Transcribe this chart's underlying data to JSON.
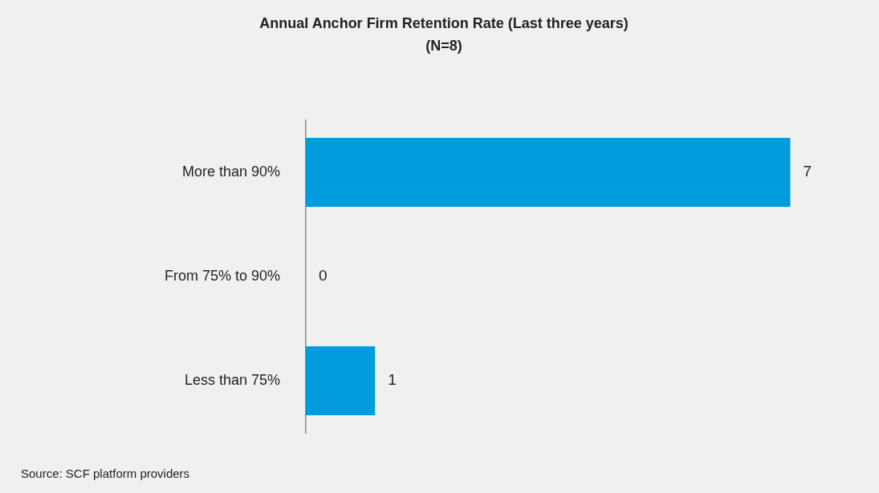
{
  "chart_data": {
    "type": "bar",
    "orientation": "horizontal",
    "title": "Annual Anchor Firm Retention Rate (Last three years)",
    "subtitle": "(N=8)",
    "categories": [
      "More than 90%",
      "From 75% to 90%",
      "Less than 75%"
    ],
    "values": [
      7,
      0,
      1
    ],
    "color": "#009cde",
    "data_labels": true,
    "tick_labels": "y",
    "legend": false,
    "annotations": [
      "Source: SCF platform providers"
    ]
  }
}
